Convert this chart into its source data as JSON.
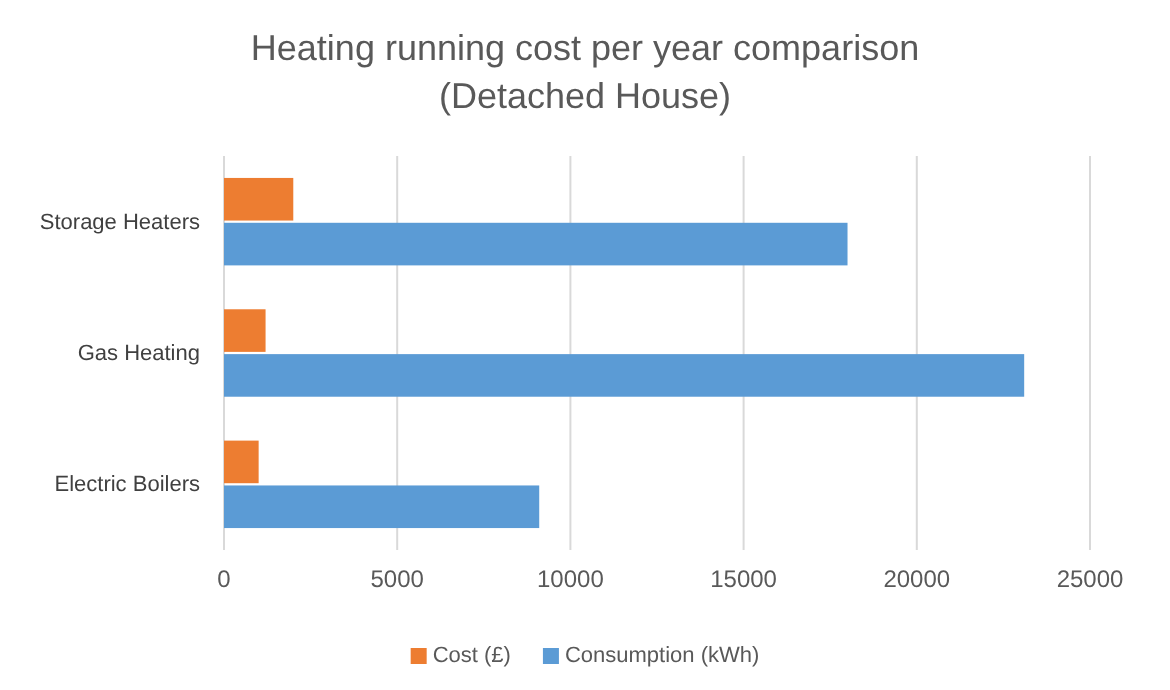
{
  "chart_data": {
    "type": "bar",
    "orientation": "horizontal",
    "title": "Heating running cost per year comparison",
    "subtitle": "(Detached House)",
    "categories": [
      "Storage Heaters",
      "Gas Heating",
      "Electric Boilers"
    ],
    "series": [
      {
        "name": "Cost (£)",
        "color": "#ed7d31",
        "values": [
          2000,
          1200,
          1000
        ]
      },
      {
        "name": "Consumption (kWh)",
        "color": "#5b9bd5",
        "values": [
          18000,
          23100,
          9100
        ]
      }
    ],
    "xlim": [
      0,
      25000
    ],
    "xticks": [
      0,
      5000,
      10000,
      15000,
      20000,
      25000
    ],
    "grid": "x",
    "legend": "bottom"
  }
}
